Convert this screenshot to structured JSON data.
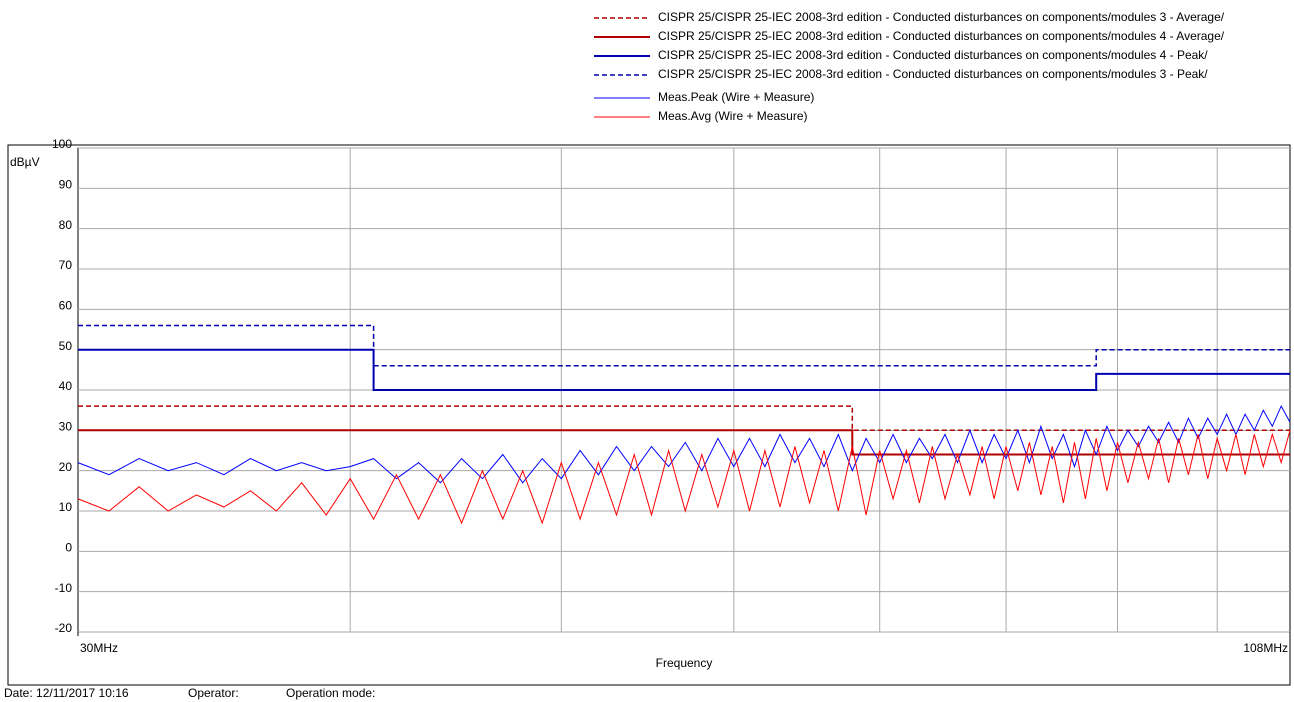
{
  "chart_data": {
    "type": "line",
    "xlabel": "Frequency",
    "ylabel": "dBµV",
    "xscale": "log",
    "xlim": [
      30,
      108
    ],
    "xticks": [
      {
        "value": 30,
        "label": "30MHz"
      },
      {
        "value": 108,
        "label": "108MHz"
      }
    ],
    "xgrid": [
      40,
      50,
      60,
      70,
      80,
      90,
      100
    ],
    "ylim": [
      -20,
      100
    ],
    "yticks": [
      -20,
      -10,
      0,
      10,
      20,
      30,
      40,
      50,
      60,
      70,
      80,
      90,
      100
    ],
    "grid": true,
    "legend": "top-right",
    "series": [
      {
        "name": "CISPR 25/CISPR 25-IEC 2008-3rd edition - Conducted disturbances on components/modules 3 - Average/",
        "color": "#b00000",
        "dash": true,
        "width": 1.5,
        "x": [
          30,
          68,
          68,
          108
        ],
        "values": [
          36,
          36,
          30,
          30
        ]
      },
      {
        "name": "CISPR 25/CISPR 25-IEC 2008-3rd edition - Conducted disturbances on components/modules 4 - Average/",
        "color": "#b00000",
        "dash": false,
        "width": 2,
        "x": [
          30,
          68,
          68,
          108
        ],
        "values": [
          30,
          30,
          24,
          24
        ]
      },
      {
        "name": "CISPR 25/CISPR 25-IEC 2008-3rd edition - Conducted disturbances on components/modules 4 - Peak/",
        "color": "#0000b0",
        "dash": false,
        "width": 2,
        "x": [
          30,
          41,
          41,
          88,
          88,
          108
        ],
        "values": [
          50,
          50,
          40,
          40,
          44,
          44
        ]
      },
      {
        "name": "CISPR 25/CISPR 25-IEC 2008-3rd edition - Conducted disturbances on components/modules 3 - Peak/",
        "color": "#0000b0",
        "dash": true,
        "width": 1.5,
        "x": [
          30,
          41,
          41,
          88,
          88,
          108
        ],
        "values": [
          56,
          56,
          46,
          46,
          50,
          50
        ]
      },
      {
        "name": "Meas.Peak (Wire + Measure)",
        "color": "#0000ff",
        "dash": false,
        "width": 1,
        "sampled": true,
        "values": [
          22,
          19,
          23,
          20,
          22,
          19,
          23,
          20,
          22,
          20,
          21,
          23,
          18,
          22,
          17,
          23,
          18,
          24,
          17,
          23,
          18,
          25,
          19,
          26,
          20,
          26,
          21,
          27,
          20,
          28,
          21,
          28,
          21,
          29,
          22,
          28,
          21,
          29,
          20,
          28,
          22,
          29,
          22,
          28,
          23,
          29,
          22,
          30,
          22,
          29,
          23,
          30,
          22,
          31,
          23,
          29,
          21,
          30,
          24,
          31,
          25,
          30,
          26,
          31,
          27,
          32,
          27,
          33,
          28,
          33,
          29,
          34,
          29,
          34,
          30,
          35,
          31,
          36,
          32
        ]
      },
      {
        "name": "Meas.Avg (Wire + Measure)",
        "color": "#ff0000",
        "dash": false,
        "width": 1,
        "sampled": true,
        "values": [
          13,
          10,
          16,
          10,
          14,
          11,
          15,
          10,
          17,
          9,
          18,
          8,
          19,
          8,
          19,
          7,
          20,
          8,
          20,
          7,
          22,
          8,
          22,
          9,
          24,
          9,
          25,
          10,
          24,
          11,
          25,
          10,
          25,
          11,
          26,
          12,
          25,
          10,
          26,
          9,
          25,
          13,
          25,
          12,
          26,
          13,
          24,
          14,
          26,
          13,
          26,
          15,
          27,
          14,
          26,
          12,
          27,
          13,
          28,
          15,
          27,
          17,
          27,
          18,
          28,
          17,
          28,
          19,
          29,
          18,
          28,
          20,
          29,
          19,
          29,
          21,
          29,
          22,
          30
        ]
      }
    ],
    "x": [
      30,
      31,
      32,
      33,
      34,
      35,
      36,
      37,
      38,
      39,
      40,
      41,
      42,
      43,
      44,
      45,
      46,
      47,
      48,
      49,
      50,
      51,
      52,
      53,
      54,
      55,
      56,
      57,
      58,
      59,
      60,
      61,
      62,
      63,
      64,
      65,
      66,
      67,
      68,
      69,
      70,
      71,
      72,
      73,
      74,
      75,
      76,
      77,
      78,
      79,
      80,
      81,
      82,
      83,
      84,
      85,
      86,
      87,
      88,
      89,
      90,
      91,
      92,
      93,
      94,
      95,
      96,
      97,
      98,
      99,
      100,
      101,
      102,
      103,
      104,
      105,
      106,
      107,
      108
    ]
  },
  "footer": {
    "date": "Date: 12/11/2017 10:16",
    "operator": "Operator:",
    "mode": "Operation mode:"
  }
}
